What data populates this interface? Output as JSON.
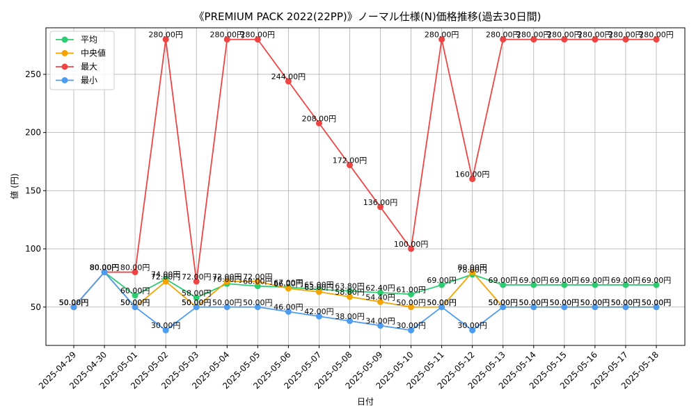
{
  "chart_data": {
    "type": "line",
    "title": "《PREMIUM PACK 2022(22PP)》ノーマル仕様(N)価格推移(過去30日間)",
    "xlabel": "日付",
    "ylabel": "値 (円)",
    "ylim": [
      17,
      290
    ],
    "yticks": [
      50,
      100,
      150,
      200,
      250
    ],
    "grid": true,
    "legend_position": "top-left",
    "unit_suffix": "円",
    "categories": [
      "2025-04-29",
      "2025-04-30",
      "2025-05-01",
      "2025-05-02",
      "2025-05-03",
      "2025-05-04",
      "2025-05-05",
      "2025-05-06",
      "2025-05-07",
      "2025-05-08",
      "2025-05-09",
      "2025-05-10",
      "2025-05-11",
      "2025-05-12",
      "2025-05-13",
      "2025-05-14",
      "2025-05-15",
      "2025-05-16",
      "2025-05-17",
      "2025-05-18"
    ],
    "series": [
      {
        "name": "平均",
        "color": "#2ecc71",
        "values": [
          50,
          80,
          60,
          74,
          58,
          70,
          68,
          67,
          65,
          63.8,
          62.4,
          61,
          69,
          78,
          69,
          69,
          69,
          69,
          69,
          69
        ]
      },
      {
        "name": "中央値",
        "color": "#f5a300",
        "values": [
          50,
          80,
          50,
          72,
          50,
          72,
          72,
          66,
          63,
          58.8,
          54.4,
          50,
          50,
          80,
          50,
          50,
          50,
          50,
          50,
          50
        ]
      },
      {
        "name": "最大",
        "color": "#ef4444",
        "values": [
          50,
          80,
          80,
          280,
          72,
          280,
          280,
          244,
          208,
          172,
          136,
          100,
          280,
          160,
          280,
          280,
          280,
          280,
          280,
          280
        ]
      },
      {
        "name": "最小",
        "color": "#4d9cf2",
        "values": [
          50,
          80,
          50,
          30,
          50,
          50,
          50,
          46,
          42,
          38,
          34,
          30,
          50,
          30,
          50,
          50,
          50,
          50,
          50,
          50
        ]
      }
    ]
  }
}
